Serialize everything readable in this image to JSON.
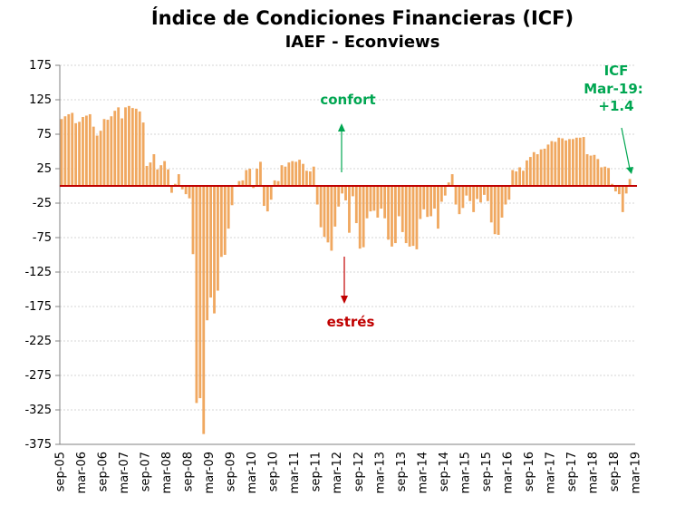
{
  "chart_data": {
    "type": "bar",
    "title": "Índice de Condiciones Financieras (ICF)",
    "subtitle": "IAEF - Econviews",
    "ylim": [
      -375,
      175
    ],
    "y_ticks": [
      175,
      125,
      75,
      25,
      -25,
      -75,
      -125,
      -175,
      -225,
      -275,
      -325,
      -375
    ],
    "x_tick_labels": [
      "sep-05",
      "mar-06",
      "sep-06",
      "mar-07",
      "sep-07",
      "mar-08",
      "sep-08",
      "mar-09",
      "sep-09",
      "mar-10",
      "sep-10",
      "mar-11",
      "sep-11",
      "mar-12",
      "sep-12",
      "mar-13",
      "sep-13",
      "mar-14",
      "sep-14",
      "mar-15",
      "sep-15",
      "mar-16",
      "sep-16",
      "mar-17",
      "sep-17",
      "mar-18",
      "sep-18",
      "mar-19"
    ],
    "grid": true,
    "bar_color": "#F0A860",
    "zero_line_color": "#C00000",
    "values": [
      97,
      101,
      104,
      106,
      91,
      93,
      100,
      102,
      104,
      86,
      73,
      80,
      97,
      96,
      101,
      109,
      114,
      98,
      114,
      116,
      113,
      112,
      108,
      92,
      29,
      34,
      46,
      24,
      30,
      36,
      24,
      -10,
      3,
      17,
      -5,
      -12,
      -18,
      -99,
      -315,
      -308,
      -360,
      -195,
      -162,
      -185,
      -152,
      -103,
      -100,
      -62,
      -28,
      0,
      7,
      8,
      23,
      25,
      -3,
      25,
      35,
      -29,
      -37,
      -20,
      8,
      7,
      30,
      28,
      34,
      36,
      35,
      38,
      32,
      22,
      21,
      28,
      -27,
      -60,
      -74,
      -82,
      -94,
      -59,
      -30,
      -11,
      -21,
      -68,
      -15,
      -54,
      -91,
      -89,
      -47,
      -37,
      -36,
      -46,
      -33,
      -47,
      -78,
      -88,
      -83,
      -44,
      -67,
      -83,
      -88,
      -87,
      -92,
      -48,
      -34,
      -45,
      -44,
      -33,
      -62,
      -23,
      -14,
      5,
      17,
      -27,
      -41,
      -32,
      -14,
      -22,
      -38,
      -19,
      -24,
      -13,
      -22,
      -53,
      -70,
      -71,
      -46,
      -27,
      -20,
      23,
      21,
      27,
      22,
      37,
      42,
      49,
      46,
      53,
      54,
      60,
      65,
      64,
      70,
      69,
      66,
      68,
      68,
      70,
      70,
      71,
      46,
      44,
      45,
      39,
      27,
      28,
      26,
      3,
      -8,
      -12,
      -38,
      -11,
      10,
      1.4
    ],
    "annotations": {
      "confort": "confort",
      "estres": "estrés",
      "icf_line1": "ICF",
      "icf_line2": "Mar-19:",
      "icf_line3": "+1.4"
    },
    "colors": {
      "confort": "#00A651",
      "estres": "#C00000"
    }
  }
}
